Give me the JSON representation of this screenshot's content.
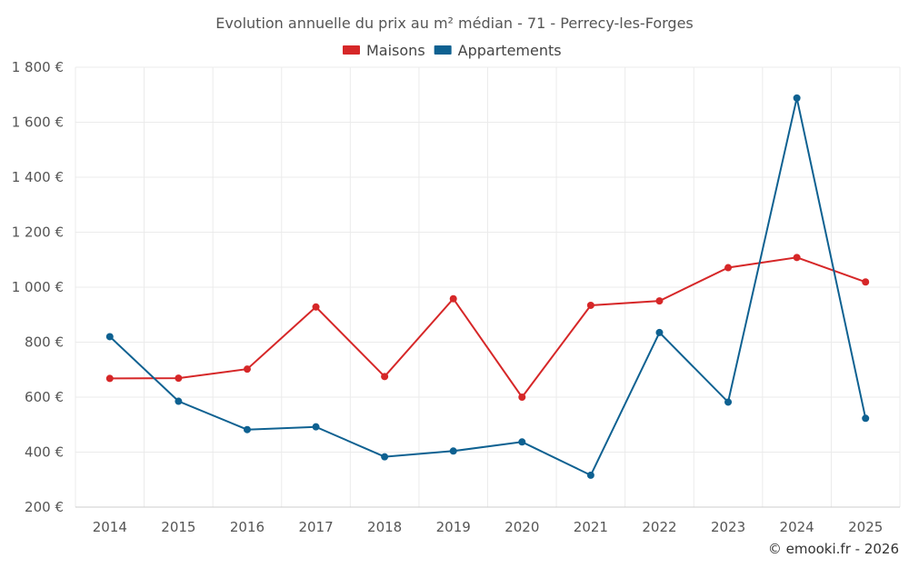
{
  "chart_data": {
    "type": "line",
    "title": "Evolution annuelle du prix au m² médian - 71 - Perrecy-les-Forges",
    "categories": [
      "2014",
      "2015",
      "2016",
      "2017",
      "2018",
      "2019",
      "2020",
      "2021",
      "2022",
      "2023",
      "2024",
      "2025"
    ],
    "series": [
      {
        "name": "Maisons",
        "color": "#d62728",
        "values": [
          668,
          669,
          702,
          928,
          675,
          958,
          600,
          934,
          950,
          1071,
          1108,
          1019
        ]
      },
      {
        "name": "Appartements",
        "color": "#0e6191",
        "values": [
          820,
          585,
          482,
          492,
          383,
          404,
          437,
          316,
          835,
          582,
          1688,
          523
        ]
      }
    ],
    "ylim": [
      200,
      1800
    ],
    "yticks": [
      200,
      400,
      600,
      800,
      1000,
      1200,
      1400,
      1600,
      1800
    ],
    "ytick_labels": [
      "200 €",
      "400 €",
      "600 €",
      "800 €",
      "1 000 €",
      "1 200 €",
      "1 400 €",
      "1 600 €",
      "1 800 €"
    ],
    "xlabel": "",
    "ylabel": "",
    "grid": true,
    "legend_position": "top-center"
  },
  "credit": "© emooki.fr - 2026"
}
